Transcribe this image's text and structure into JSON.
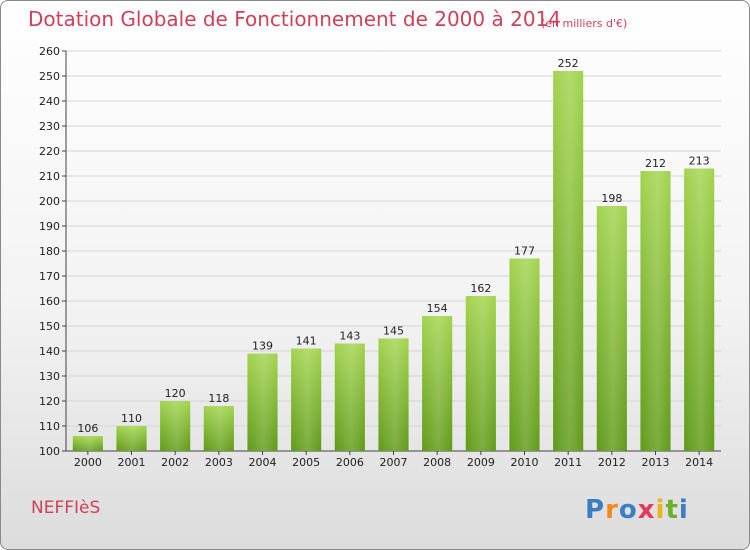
{
  "header": {
    "title": "Dotation Globale de Fonctionnement de 2000 à 2014",
    "unit": "(en milliers d'€)"
  },
  "footer": {
    "commune": "NEFFIèS",
    "logo_text": "Proxiti"
  },
  "colors": {
    "title": "#d0405a",
    "bar_light": "#9ed04a",
    "bar_dark": "#5f9a18",
    "grid": "#d0d0d0"
  },
  "chart_data": {
    "type": "bar",
    "title": "Dotation Globale de Fonctionnement de 2000 à 2014",
    "xlabel": "",
    "ylabel": "",
    "categories": [
      "2000",
      "2001",
      "2002",
      "2003",
      "2004",
      "2005",
      "2006",
      "2007",
      "2008",
      "2009",
      "2010",
      "2011",
      "2012",
      "2013",
      "2014"
    ],
    "values": [
      106,
      110,
      120,
      118,
      139,
      141,
      143,
      145,
      154,
      162,
      177,
      252,
      198,
      212,
      213
    ],
    "ylim": [
      100,
      260
    ],
    "yticks": [
      100,
      110,
      120,
      130,
      140,
      150,
      160,
      170,
      180,
      190,
      200,
      210,
      220,
      230,
      240,
      250,
      260
    ],
    "grid": true,
    "legend": "none"
  }
}
